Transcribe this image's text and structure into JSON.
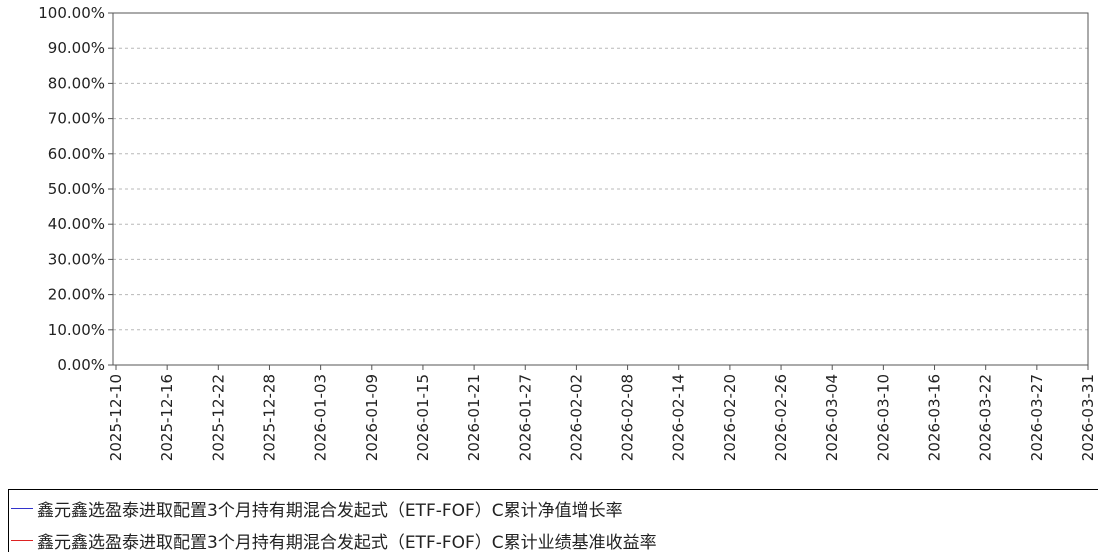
{
  "chart_data": {
    "type": "line",
    "title": "",
    "xlabel": "",
    "ylabel": "",
    "x_tick_labels": [
      "2025-12-10",
      "2025-12-16",
      "2025-12-22",
      "2025-12-28",
      "2026-01-03",
      "2026-01-09",
      "2026-01-15",
      "2026-01-21",
      "2026-01-27",
      "2026-02-02",
      "2026-02-08",
      "2026-02-14",
      "2026-02-20",
      "2026-02-26",
      "2026-03-04",
      "2026-03-10",
      "2026-03-16",
      "2026-03-22",
      "2026-03-27",
      "2026-03-31"
    ],
    "y_tick_labels": [
      "0.00%",
      "10.00%",
      "20.00%",
      "30.00%",
      "40.00%",
      "50.00%",
      "60.00%",
      "70.00%",
      "80.00%",
      "90.00%",
      "100.00%"
    ],
    "ylim": [
      0,
      100
    ],
    "y_unit": "%",
    "grid": "horizontal-dashed",
    "legend_position": "bottom",
    "series": [
      {
        "name": "鑫元鑫选盈泰进取配置3个月持有期混合发起式（ETF-FOF）C累计净值增长率",
        "color": "#3333cc",
        "values": []
      },
      {
        "name": "鑫元鑫选盈泰进取配置3个月持有期混合发起式（ETF-FOF）C累计业绩基准收益率",
        "color": "#dd2222",
        "values": []
      }
    ]
  }
}
